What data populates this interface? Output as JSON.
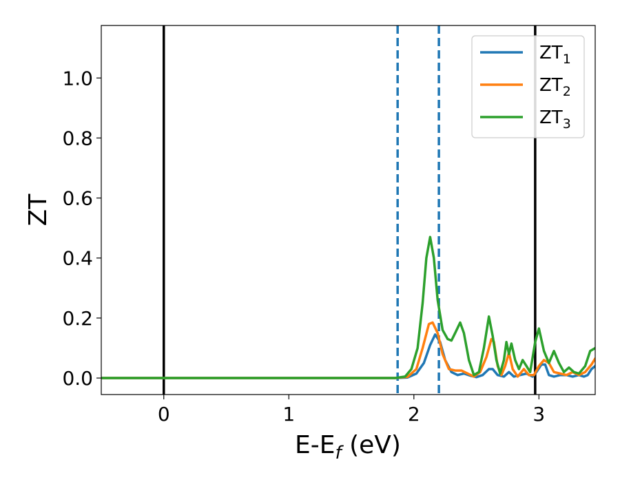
{
  "chart_data": {
    "type": "line",
    "xlabel": {
      "main": "E-E",
      "sub": "f",
      "unit": " (eV)"
    },
    "ylabel": "ZT",
    "xlim": [
      -0.5,
      3.45
    ],
    "ylim": [
      -0.055,
      1.175
    ],
    "x_ticks": [
      0,
      1,
      2,
      3
    ],
    "x_tick_labels": [
      "0",
      "1",
      "2",
      "3"
    ],
    "y_ticks": [
      0.0,
      0.2,
      0.4,
      0.6,
      0.8,
      1.0
    ],
    "y_tick_labels": [
      "0.0",
      "0.2",
      "0.4",
      "0.6",
      "0.8",
      "1.0"
    ],
    "grid": false,
    "legend_position": "top-right",
    "vertical_lines": [
      {
        "x": 0.0,
        "style": "solid",
        "color": "#000000"
      },
      {
        "x": 2.97,
        "style": "solid",
        "color": "#000000"
      },
      {
        "x": 1.87,
        "style": "dashed",
        "color": "#1f77b4"
      },
      {
        "x": 2.2,
        "style": "dashed",
        "color": "#1f77b4"
      }
    ],
    "series": [
      {
        "name": {
          "main": "ZT",
          "sub": "1"
        },
        "color": "#1f77b4",
        "points": [
          [
            -0.5,
            0
          ],
          [
            1.85,
            0
          ],
          [
            1.95,
            0.002
          ],
          [
            2.02,
            0.015
          ],
          [
            2.08,
            0.05
          ],
          [
            2.13,
            0.11
          ],
          [
            2.17,
            0.145
          ],
          [
            2.21,
            0.12
          ],
          [
            2.25,
            0.06
          ],
          [
            2.3,
            0.02
          ],
          [
            2.35,
            0.01
          ],
          [
            2.4,
            0.015
          ],
          [
            2.45,
            0.008
          ],
          [
            2.5,
            0.003
          ],
          [
            2.55,
            0.01
          ],
          [
            2.6,
            0.03
          ],
          [
            2.63,
            0.03
          ],
          [
            2.67,
            0.01
          ],
          [
            2.72,
            0.005
          ],
          [
            2.76,
            0.02
          ],
          [
            2.8,
            0.005
          ],
          [
            2.85,
            0.01
          ],
          [
            2.9,
            0.015
          ],
          [
            2.95,
            0.005
          ],
          [
            2.98,
            0.02
          ],
          [
            3.02,
            0.045
          ],
          [
            3.05,
            0.045
          ],
          [
            3.08,
            0.01
          ],
          [
            3.12,
            0.005
          ],
          [
            3.17,
            0.01
          ],
          [
            3.22,
            0.01
          ],
          [
            3.27,
            0.005
          ],
          [
            3.32,
            0.01
          ],
          [
            3.36,
            0.005
          ],
          [
            3.39,
            0.01
          ],
          [
            3.42,
            0.03
          ],
          [
            3.45,
            0.04
          ]
        ]
      },
      {
        "name": {
          "main": "ZT",
          "sub": "2"
        },
        "color": "#ff7f0e",
        "points": [
          [
            -0.5,
            0
          ],
          [
            1.85,
            0
          ],
          [
            1.95,
            0.004
          ],
          [
            2.02,
            0.03
          ],
          [
            2.07,
            0.1
          ],
          [
            2.12,
            0.18
          ],
          [
            2.15,
            0.185
          ],
          [
            2.19,
            0.15
          ],
          [
            2.23,
            0.08
          ],
          [
            2.28,
            0.03
          ],
          [
            2.33,
            0.025
          ],
          [
            2.38,
            0.025
          ],
          [
            2.43,
            0.015
          ],
          [
            2.48,
            0.005
          ],
          [
            2.53,
            0.02
          ],
          [
            2.58,
            0.07
          ],
          [
            2.62,
            0.13
          ],
          [
            2.64,
            0.12
          ],
          [
            2.67,
            0.04
          ],
          [
            2.7,
            0.01
          ],
          [
            2.73,
            0.04
          ],
          [
            2.76,
            0.085
          ],
          [
            2.79,
            0.03
          ],
          [
            2.83,
            0.005
          ],
          [
            2.88,
            0.03
          ],
          [
            2.92,
            0.01
          ],
          [
            2.96,
            0.01
          ],
          [
            3.0,
            0.04
          ],
          [
            3.04,
            0.06
          ],
          [
            3.08,
            0.05
          ],
          [
            3.12,
            0.02
          ],
          [
            3.17,
            0.015
          ],
          [
            3.22,
            0.01
          ],
          [
            3.27,
            0.02
          ],
          [
            3.32,
            0.01
          ],
          [
            3.37,
            0.02
          ],
          [
            3.42,
            0.045
          ],
          [
            3.45,
            0.065
          ]
        ]
      },
      {
        "name": {
          "main": "ZT",
          "sub": "3"
        },
        "color": "#2ca02c",
        "points": [
          [
            -0.5,
            0
          ],
          [
            1.85,
            0
          ],
          [
            1.93,
            0.005
          ],
          [
            1.98,
            0.03
          ],
          [
            2.03,
            0.1
          ],
          [
            2.07,
            0.25
          ],
          [
            2.1,
            0.4
          ],
          [
            2.13,
            0.47
          ],
          [
            2.16,
            0.4
          ],
          [
            2.19,
            0.26
          ],
          [
            2.23,
            0.16
          ],
          [
            2.27,
            0.13
          ],
          [
            2.3,
            0.125
          ],
          [
            2.33,
            0.15
          ],
          [
            2.37,
            0.185
          ],
          [
            2.4,
            0.15
          ],
          [
            2.44,
            0.06
          ],
          [
            2.48,
            0.01
          ],
          [
            2.52,
            0.02
          ],
          [
            2.56,
            0.1
          ],
          [
            2.6,
            0.205
          ],
          [
            2.63,
            0.14
          ],
          [
            2.66,
            0.06
          ],
          [
            2.69,
            0.015
          ],
          [
            2.72,
            0.06
          ],
          [
            2.74,
            0.12
          ],
          [
            2.76,
            0.08
          ],
          [
            2.78,
            0.115
          ],
          [
            2.81,
            0.06
          ],
          [
            2.84,
            0.03
          ],
          [
            2.87,
            0.06
          ],
          [
            2.9,
            0.04
          ],
          [
            2.93,
            0.02
          ],
          [
            2.97,
            0.12
          ],
          [
            3.0,
            0.165
          ],
          [
            3.04,
            0.09
          ],
          [
            3.08,
            0.05
          ],
          [
            3.12,
            0.09
          ],
          [
            3.16,
            0.05
          ],
          [
            3.2,
            0.02
          ],
          [
            3.24,
            0.035
          ],
          [
            3.28,
            0.02
          ],
          [
            3.32,
            0.015
          ],
          [
            3.37,
            0.04
          ],
          [
            3.41,
            0.09
          ],
          [
            3.45,
            0.1
          ]
        ]
      }
    ]
  }
}
